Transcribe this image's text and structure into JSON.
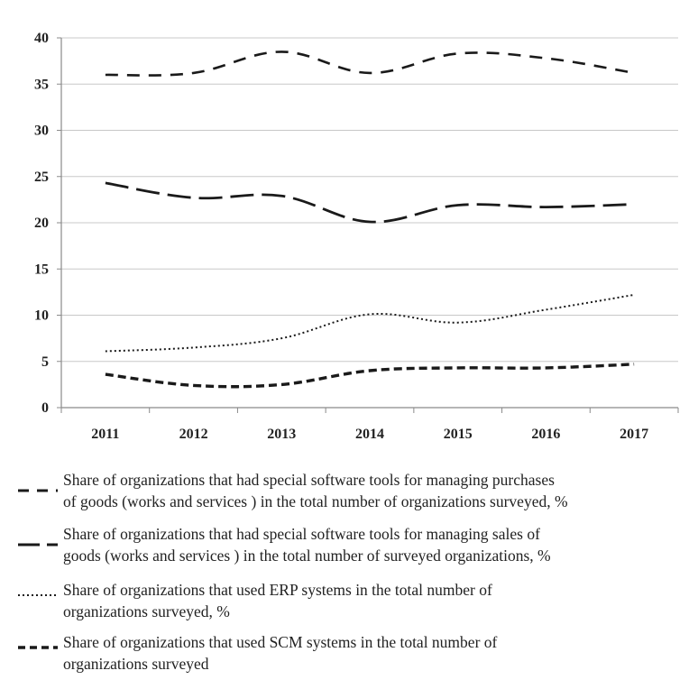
{
  "chart_data": {
    "type": "line",
    "title": "",
    "xlabel": "",
    "ylabel": "",
    "categories": [
      "2011",
      "2012",
      "2013",
      "2014",
      "2015",
      "2016",
      "2017"
    ],
    "ylim": [
      0,
      40
    ],
    "yticks": [
      "0",
      "5",
      "10",
      "15",
      "20",
      "25",
      "30",
      "35",
      "40"
    ],
    "grid": "horizontal",
    "legend_position": "bottom",
    "series": [
      {
        "name": "Share of organizations that had special software tools for managing purchases of goods (works and services ) in the total number of organizations surveyed, %",
        "values": [
          36.0,
          36.2,
          38.5,
          36.2,
          38.3,
          37.8,
          36.2
        ],
        "dash": "medium",
        "color": "#1a1a1a"
      },
      {
        "name": "Share of organizations that had special software tools for managing sales of goods (works and services ) in the total number of surveyed organizations, %",
        "values": [
          24.3,
          22.7,
          22.9,
          20.1,
          21.9,
          21.7,
          22.0
        ],
        "dash": "long",
        "color": "#1a1a1a"
      },
      {
        "name": "Share of organizations that used ERP systems in the total number of organizations surveyed, %",
        "values": [
          6.1,
          6.5,
          7.5,
          10.1,
          9.2,
          10.6,
          12.2
        ],
        "dash": "dotted",
        "color": "#1a1a1a"
      },
      {
        "name": "Share of organizations that used SCM systems in the total number of organizations surveyed",
        "values": [
          3.6,
          2.4,
          2.5,
          4.0,
          4.3,
          4.3,
          4.7
        ],
        "dash": "short",
        "color": "#1a1a1a"
      }
    ]
  },
  "legend": {
    "items": [
      {
        "line1": "Share of organizations that had special software tools for managing purchases",
        "line2": "of goods (works and services ) in the total number of organizations surveyed, %"
      },
      {
        "line1": "Share of organizations that had special software tools for managing sales of",
        "line2": "goods (works and services ) in the total number of surveyed organizations, %"
      },
      {
        "line1": "Share of organizations that used ERP systems in the total number of",
        "line2": "organizations surveyed, %"
      },
      {
        "line1": "Share of organizations that used SCM systems in the total number of",
        "line2": "organizations surveyed"
      }
    ]
  }
}
